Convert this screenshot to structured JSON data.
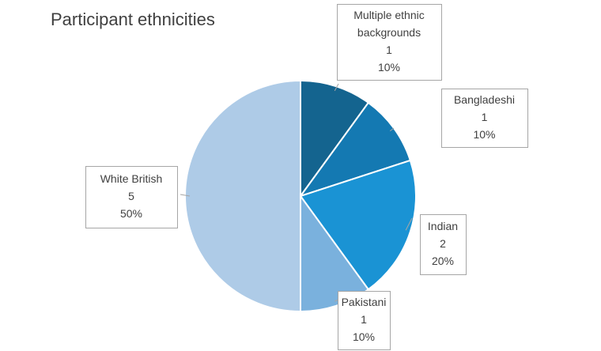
{
  "chart_data": {
    "type": "pie",
    "title": "Participant ethnicities",
    "slices": [
      {
        "label": "Multiple ethnic backgrounds",
        "label_lines": [
          "Multiple ethnic",
          "backgrounds"
        ],
        "value": 1,
        "percent": "10%",
        "color": "#14648f"
      },
      {
        "label": "Bangladeshi",
        "label_lines": [
          "Bangladeshi"
        ],
        "value": 1,
        "percent": "10%",
        "color": "#1479b2"
      },
      {
        "label": "Indian",
        "label_lines": [
          "Indian"
        ],
        "value": 2,
        "percent": "20%",
        "color": "#1a93d4"
      },
      {
        "label": "Pakistani",
        "label_lines": [
          "Pakistani"
        ],
        "value": 1,
        "percent": "10%",
        "color": "#7ab1dd"
      },
      {
        "label": "White British",
        "label_lines": [
          "White British"
        ],
        "value": 5,
        "percent": "50%",
        "color": "#aecbe7"
      }
    ]
  }
}
